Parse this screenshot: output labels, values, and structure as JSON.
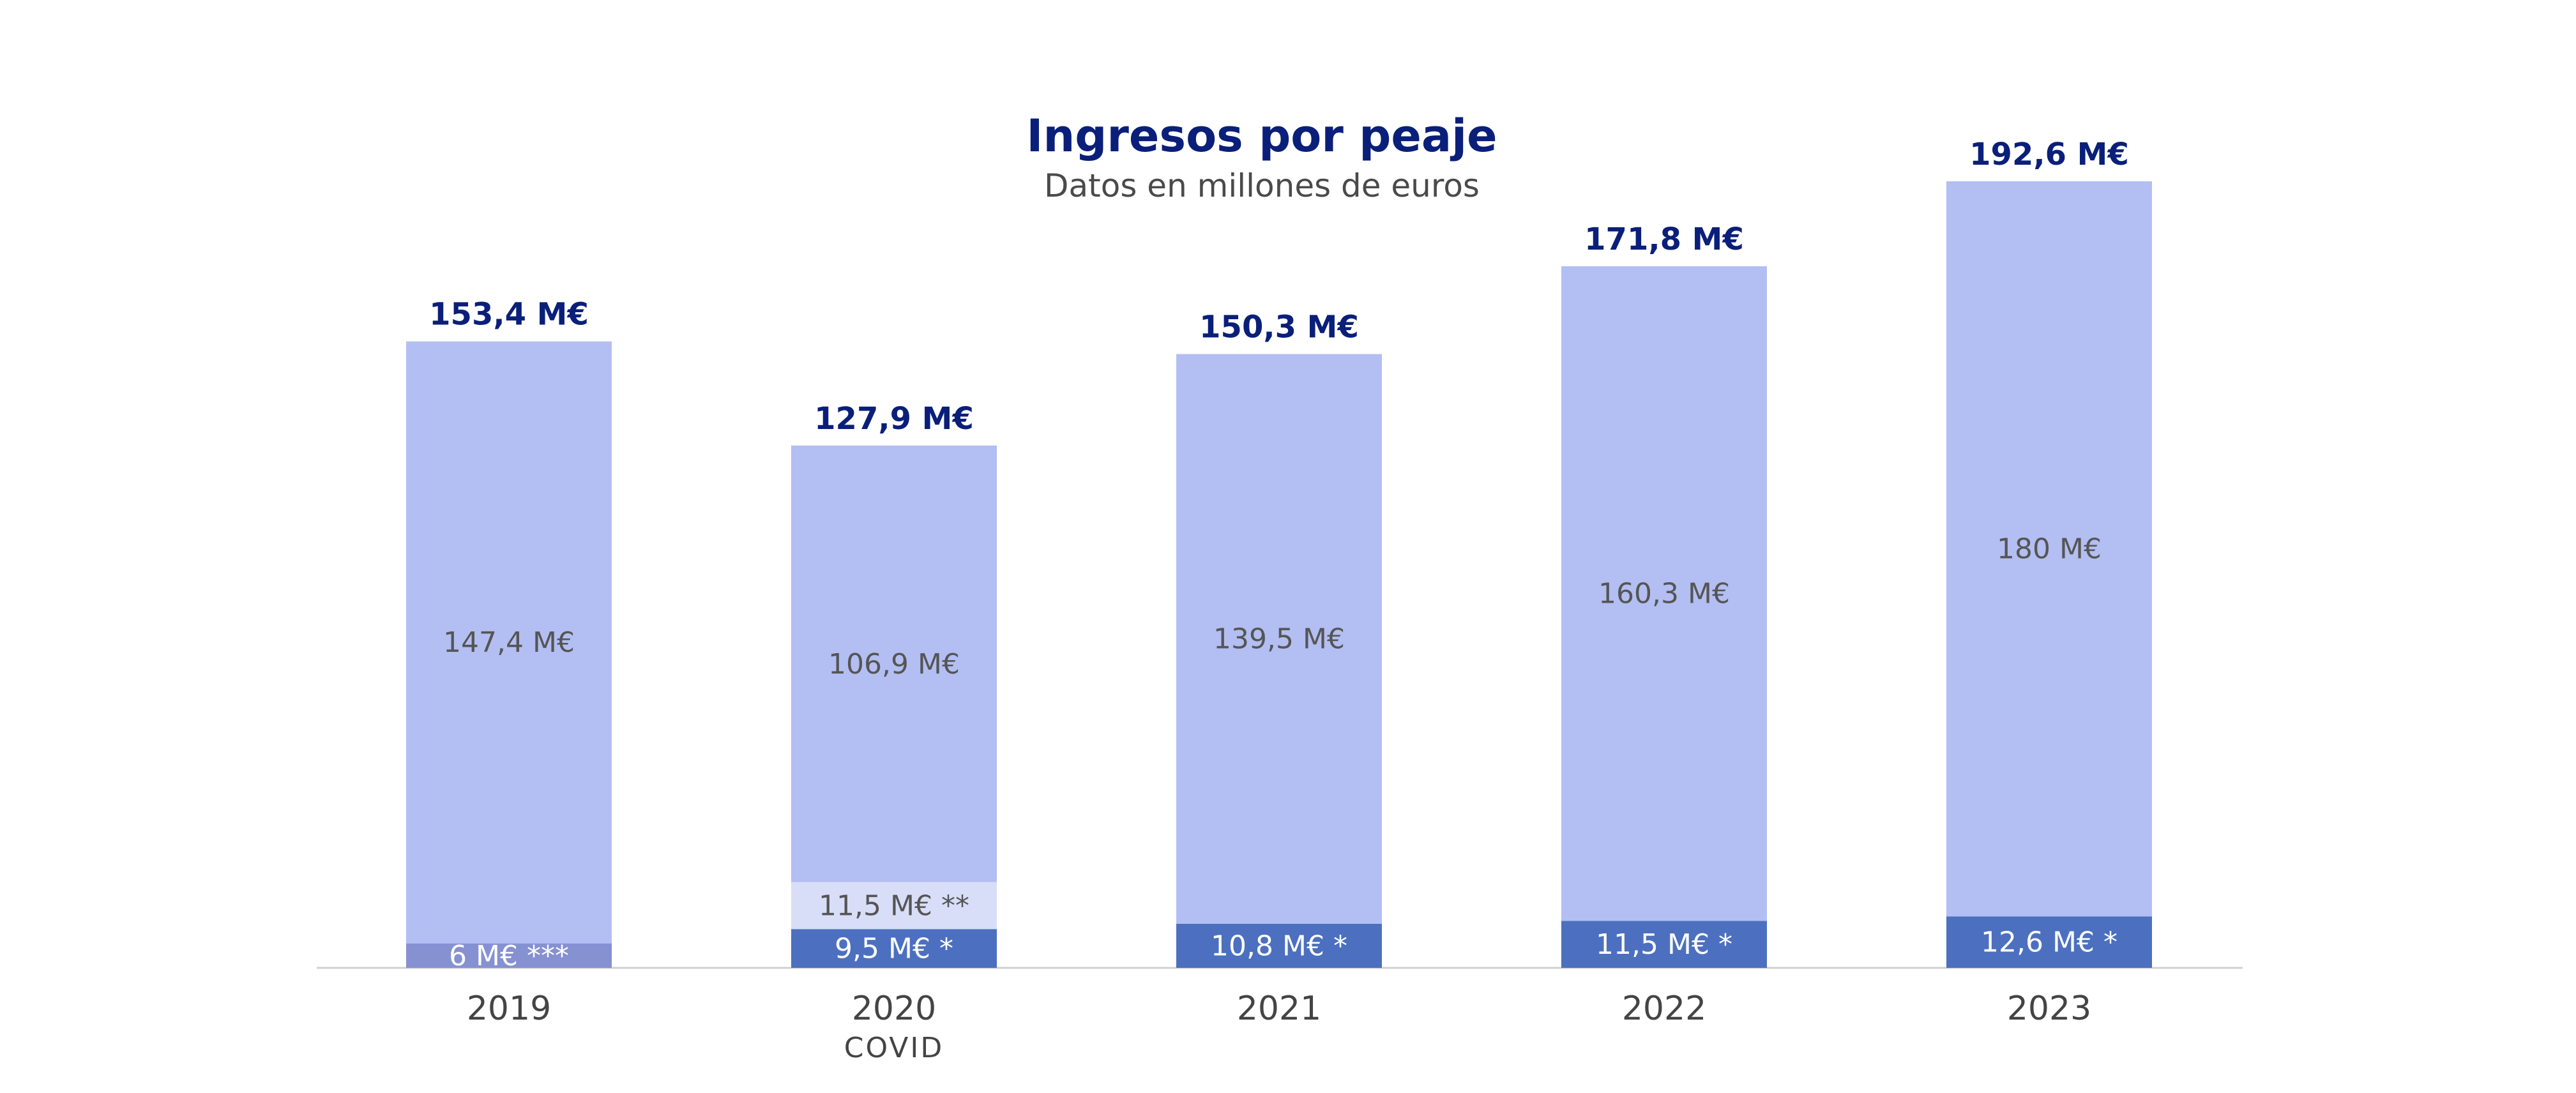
{
  "chart_data": {
    "type": "bar",
    "stacked": true,
    "title": "Ingresos por peaje",
    "subtitle": "Datos en millones de euros",
    "categories": [
      "2019",
      "2020",
      "2021",
      "2022",
      "2023"
    ],
    "category_notes": [
      "",
      "COVID",
      "",
      "",
      ""
    ],
    "segments": [
      {
        "values": [
          6.0,
          9.5,
          10.8,
          11.5,
          12.6
        ],
        "labels": [
          "6 M€ ***",
          "9,5 M€ *",
          "10,8 M€ *",
          "11,5 M€ *",
          "12,6 M€ *"
        ]
      },
      {
        "values": [
          0,
          11.5,
          0,
          0,
          0
        ],
        "labels": [
          "",
          "11,5 M€ **",
          "",
          "",
          ""
        ]
      },
      {
        "values": [
          147.4,
          106.9,
          139.5,
          160.3,
          180.0
        ],
        "labels": [
          "147,4 M€",
          "106,9 M€",
          "139,5 M€",
          "160,3 M€",
          "180 M€"
        ]
      }
    ],
    "totals": [
      153.4,
      127.9,
      150.3,
      171.8,
      192.6
    ],
    "total_labels": [
      "153,4 M€",
      "127,9 M€",
      "150,3 M€",
      "171,8 M€",
      "192,6 M€"
    ],
    "ylim": [
      0,
      200
    ],
    "grid": false,
    "legend": "none",
    "colors": {
      "title": "#0a1f7a",
      "subtitle": "#4a4a4a",
      "total_label": "#0a1f7a",
      "segment_label_dark": "#555555",
      "segment_label_light": "#ffffff",
      "category_label": "#444444",
      "axis": "#d0d0d0",
      "main": "#b3bff2",
      "base_blue": "#4c70bf",
      "base_2019": "#8591d1",
      "base_2020_extra": "#d9def8"
    }
  }
}
